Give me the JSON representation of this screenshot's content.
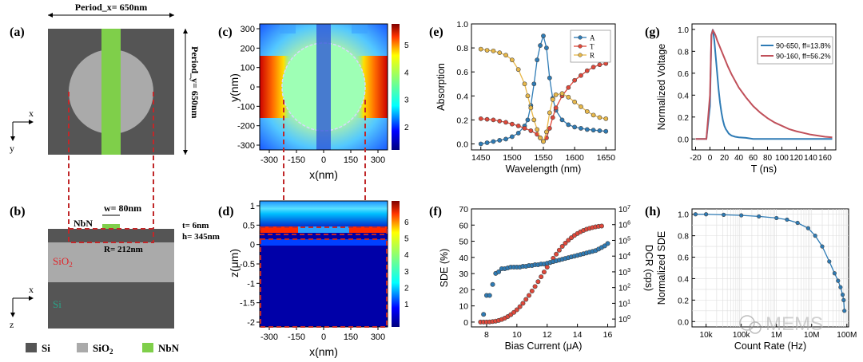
{
  "figure": {
    "panel_labels": [
      "(a)",
      "(b)",
      "(c)",
      "(d)",
      "(e)",
      "(f)",
      "(g)",
      "(h)"
    ],
    "colors": {
      "si": "#555555",
      "sio2": "#aaaaaa",
      "nbn": "#7fcf4a",
      "dash_red": "#c0282a",
      "blue": "#2e7bb5",
      "red": "#e0483a",
      "orange": "#e8b84a"
    }
  },
  "panel_a": {
    "period_x": "Period_x= 650nm",
    "period_y": "Period_y= 650nm",
    "axis_x": "x",
    "axis_y": "y"
  },
  "panel_b": {
    "nbn_label": "NbN",
    "w_label": "w= 80nm",
    "t_label": "t= 6nm",
    "h_label": "h= 345nm",
    "r_label": "R= 212nm",
    "sio2_label": "SiO",
    "sio2_sub": "2",
    "si_label": "Si",
    "axis_x": "x",
    "axis_z": "z"
  },
  "legend_ab": [
    {
      "label": "Si",
      "color_key": "si"
    },
    {
      "label": "SiO",
      "sub": "2",
      "color_key": "sio2"
    },
    {
      "label": "NbN",
      "color_key": "nbn"
    }
  ],
  "panel_c": {
    "ylabel": "y(nm)",
    "xlabel": "x(nm)",
    "yticks": [
      "300",
      "200",
      "100",
      "0",
      "-100",
      "-200",
      "-300"
    ],
    "xticks": [
      "-300",
      "-150",
      "0",
      "150",
      "300"
    ],
    "colorbar_ticks": [
      "5",
      "4",
      "3",
      "2"
    ]
  },
  "panel_d": {
    "ylabel": "z(μm)",
    "xlabel": "x(nm)",
    "yticks": [
      "1",
      "0.5",
      "0",
      "-0.5",
      "-1",
      "-1.5",
      "-2"
    ],
    "xticks": [
      "-300",
      "-150",
      "0",
      "150",
      "300"
    ],
    "colorbar_ticks": [
      "6",
      "5",
      "4",
      "3",
      "2",
      "1"
    ]
  },
  "chart_data": [
    {
      "id": "e",
      "type": "line",
      "title": "",
      "xlabel": "Wavelength (nm)",
      "ylabel": "Absorption",
      "xlim": [
        1435,
        1665
      ],
      "ylim": [
        -0.05,
        1.0
      ],
      "xticks": [
        "1450",
        "1500",
        "1550",
        "1600",
        "1650"
      ],
      "yticks": [
        "0.0",
        "0.2",
        "0.4",
        "0.6",
        "0.8",
        "1.0"
      ],
      "legend": [
        "A",
        "T",
        "R"
      ],
      "series": [
        {
          "name": "A",
          "color": "#2e7bb5",
          "x": [
            1450,
            1460,
            1470,
            1480,
            1490,
            1500,
            1510,
            1520,
            1525,
            1530,
            1535,
            1540,
            1545,
            1550,
            1555,
            1560,
            1565,
            1570,
            1580,
            1590,
            1600,
            1610,
            1620,
            1630,
            1640,
            1650
          ],
          "y": [
            0.0,
            0.01,
            0.02,
            0.03,
            0.04,
            0.06,
            0.09,
            0.15,
            0.2,
            0.32,
            0.5,
            0.7,
            0.82,
            0.9,
            0.8,
            0.55,
            0.38,
            0.28,
            0.2,
            0.16,
            0.14,
            0.13,
            0.12,
            0.115,
            0.11,
            0.105
          ]
        },
        {
          "name": "T",
          "color": "#e0483a",
          "x": [
            1450,
            1460,
            1470,
            1480,
            1490,
            1500,
            1510,
            1520,
            1530,
            1540,
            1545,
            1550,
            1555,
            1560,
            1565,
            1570,
            1580,
            1590,
            1600,
            1610,
            1620,
            1630,
            1640,
            1650
          ],
          "y": [
            0.21,
            0.205,
            0.2,
            0.19,
            0.18,
            0.165,
            0.15,
            0.13,
            0.11,
            0.08,
            0.05,
            0.02,
            0.05,
            0.13,
            0.22,
            0.3,
            0.4,
            0.47,
            0.53,
            0.57,
            0.61,
            0.64,
            0.66,
            0.67
          ]
        },
        {
          "name": "R",
          "color": "#e8b84a",
          "x": [
            1450,
            1460,
            1470,
            1480,
            1490,
            1500,
            1510,
            1520,
            1525,
            1530,
            1535,
            1540,
            1545,
            1550,
            1555,
            1560,
            1565,
            1570,
            1580,
            1590,
            1600,
            1610,
            1620,
            1630,
            1640,
            1650
          ],
          "y": [
            0.79,
            0.78,
            0.775,
            0.76,
            0.74,
            0.7,
            0.62,
            0.5,
            0.4,
            0.3,
            0.2,
            0.12,
            0.05,
            0.02,
            0.1,
            0.26,
            0.37,
            0.41,
            0.42,
            0.39,
            0.35,
            0.31,
            0.27,
            0.24,
            0.22,
            0.21
          ]
        }
      ]
    },
    {
      "id": "f",
      "type": "scatter",
      "xlabel": "Bias Current (μA)",
      "ylabel": "SDE (%)",
      "y2label": "DCR (cps)",
      "xlim": [
        7,
        16.5
      ],
      "ylim": [
        -3,
        70
      ],
      "y2lim_log10": [
        -0.5,
        7
      ],
      "xticks": [
        "8",
        "10",
        "12",
        "14",
        "16"
      ],
      "yticks": [
        "0",
        "10",
        "20",
        "30",
        "40",
        "50",
        "60",
        "70"
      ],
      "y2ticks": [
        {
          "base": "10",
          "exp": "0"
        },
        {
          "base": "10",
          "exp": "1"
        },
        {
          "base": "10",
          "exp": "2"
        },
        {
          "base": "10",
          "exp": "3"
        },
        {
          "base": "10",
          "exp": "4"
        },
        {
          "base": "10",
          "exp": "5"
        },
        {
          "base": "10",
          "exp": "6"
        },
        {
          "base": "10",
          "exp": "7"
        }
      ],
      "series": [
        {
          "name": "SDE",
          "color": "#e0483a",
          "axis": "left",
          "x": [
            7.6,
            7.8,
            8.0,
            8.2,
            8.4,
            8.6,
            8.8,
            9.0,
            9.2,
            9.4,
            9.6,
            9.8,
            10.0,
            10.2,
            10.4,
            10.6,
            10.8,
            11.0,
            11.2,
            11.4,
            11.6,
            11.8,
            12.0,
            12.2,
            12.4,
            12.6,
            12.8,
            13.0,
            13.2,
            13.4,
            13.6,
            13.8,
            14.0,
            14.2,
            14.4,
            14.6,
            14.8,
            15.0,
            15.2,
            15.4,
            15.6
          ],
          "y": [
            0,
            0,
            0,
            0.1,
            0.3,
            0.6,
            1.0,
            1.6,
            2.4,
            3.4,
            4.6,
            6.0,
            7.6,
            9.5,
            11.6,
            14.0,
            16.5,
            19.2,
            22.0,
            25.0,
            28.0,
            31.0,
            34.0,
            36.8,
            39.5,
            42.0,
            44.5,
            46.8,
            48.8,
            50.6,
            52.2,
            53.6,
            54.8,
            55.8,
            56.7,
            57.4,
            58.0,
            58.5,
            58.9,
            59.2,
            59.4
          ]
        },
        {
          "name": "DCR",
          "color": "#2e7bb5",
          "axis": "right",
          "x": [
            7.8,
            8.0,
            8.2,
            8.4,
            8.6,
            8.8,
            9.0,
            9.2,
            9.4,
            9.6,
            9.8,
            10.0,
            10.2,
            10.4,
            10.6,
            10.8,
            11.0,
            11.2,
            11.4,
            11.6,
            11.8,
            12.0,
            12.2,
            12.4,
            12.6,
            12.8,
            13.0,
            13.2,
            13.4,
            13.6,
            13.8,
            14.0,
            14.2,
            14.4,
            14.6,
            14.8,
            15.0,
            15.2,
            15.4,
            15.6,
            15.8,
            16.0
          ],
          "y": [
            0.3,
            1.5,
            1.5,
            2.2,
            2.9,
            3.0,
            3.2,
            3.2,
            3.25,
            3.3,
            3.3,
            3.3,
            3.3,
            3.35,
            3.35,
            3.4,
            3.4,
            3.45,
            3.45,
            3.5,
            3.5,
            3.55,
            3.6,
            3.65,
            3.7,
            3.75,
            3.8,
            3.85,
            3.9,
            3.95,
            4.0,
            4.05,
            4.1,
            4.15,
            4.2,
            4.25,
            4.3,
            4.35,
            4.45,
            4.55,
            4.65,
            4.8
          ]
        }
      ]
    },
    {
      "id": "g",
      "type": "line",
      "xlabel": "T (ns)",
      "ylabel": "Normalized Voltage",
      "xlim": [
        -25,
        175
      ],
      "ylim": [
        -0.1,
        1.05
      ],
      "xticks": [
        "-20",
        "0",
        "20",
        "40",
        "60",
        "80",
        "100",
        "120",
        "140",
        "160"
      ],
      "yticks": [
        "0.0",
        "0.2",
        "0.4",
        "0.6",
        "0.8",
        "1.0"
      ],
      "legend": [
        "90-650, ff=13.8%",
        "90-160, ff=56.2%"
      ],
      "series": [
        {
          "name": "90-650, ff=13.8%",
          "color": "#2e7bb5",
          "x": [
            -20,
            -5,
            0,
            2,
            4,
            6,
            8,
            10,
            12,
            14,
            16,
            18,
            20,
            22,
            24,
            26,
            28,
            30,
            35,
            40,
            50,
            60,
            80,
            100,
            120,
            140,
            160,
            170
          ],
          "y": [
            0,
            0,
            0.3,
            0.95,
            1.0,
            0.9,
            0.75,
            0.6,
            0.45,
            0.33,
            0.24,
            0.17,
            0.12,
            0.09,
            0.07,
            0.05,
            0.04,
            0.03,
            0.02,
            0.015,
            0.01,
            0.0,
            0.0,
            0.0,
            0.0,
            0.0,
            0.0,
            0.0
          ]
        },
        {
          "name": "90-160, ff=56.2%",
          "color": "#c0505a",
          "x": [
            -20,
            -5,
            0,
            2,
            4,
            6,
            8,
            10,
            15,
            20,
            25,
            30,
            40,
            50,
            60,
            70,
            80,
            90,
            100,
            110,
            120,
            130,
            140,
            150,
            160,
            170
          ],
          "y": [
            0,
            0,
            0.4,
            0.95,
            0.99,
            0.97,
            0.94,
            0.9,
            0.82,
            0.74,
            0.66,
            0.59,
            0.47,
            0.38,
            0.3,
            0.24,
            0.19,
            0.15,
            0.12,
            0.09,
            0.07,
            0.055,
            0.04,
            0.03,
            0.02,
            0.015
          ]
        }
      ]
    },
    {
      "id": "h",
      "type": "line",
      "xlabel": "Count Rate (Hz)",
      "ylabel": "Normalized SDE",
      "xlim_log10": [
        3.6,
        8.05
      ],
      "ylim": [
        -0.05,
        1.05
      ],
      "xticks": [
        "10k",
        "100k",
        "1M",
        "10M",
        "100M"
      ],
      "yticks": [
        "0.0",
        "0.2",
        "0.4",
        "0.6",
        "0.8",
        "1.0"
      ],
      "series": [
        {
          "name": "SDE",
          "color": "#2e7bb5",
          "x_log10": [
            3.7,
            4.0,
            4.5,
            5.0,
            5.5,
            6.0,
            6.3,
            6.6,
            6.9,
            7.1,
            7.3,
            7.5,
            7.65,
            7.75,
            7.82,
            7.88,
            7.91,
            7.93
          ],
          "y": [
            1.0,
            1.0,
            0.995,
            0.99,
            0.98,
            0.965,
            0.95,
            0.92,
            0.87,
            0.8,
            0.7,
            0.56,
            0.45,
            0.38,
            0.32,
            0.25,
            0.2,
            0.1
          ]
        }
      ]
    }
  ],
  "watermark": "MEMS"
}
